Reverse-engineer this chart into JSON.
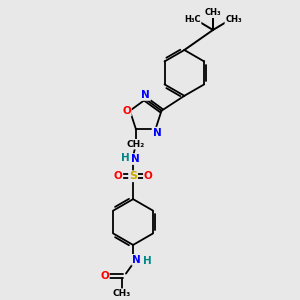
{
  "bg_color": "#e8e8e8",
  "bond_color": "#000000",
  "atom_colors": {
    "N": "#0000ff",
    "O": "#ff0000",
    "S": "#ccaa00",
    "H": "#008888",
    "C": "#000000"
  },
  "figsize": [
    3.0,
    3.0
  ],
  "dpi": 100,
  "xlim": [
    0,
    10
  ],
  "ylim": [
    0,
    10
  ]
}
